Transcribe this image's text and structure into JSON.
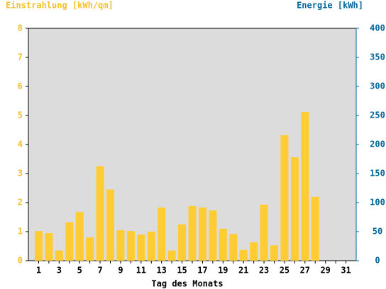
{
  "chart_data": {
    "type": "bar",
    "y_title": "Einstrahlung [kWh/qm]",
    "y2_title": "Energie [kWh]",
    "x_title": "Tag des Monats",
    "categories": [
      1,
      null,
      3,
      null,
      5,
      null,
      7,
      null,
      9,
      null,
      11,
      null,
      13,
      null,
      15,
      null,
      17,
      null,
      19,
      null,
      21,
      null,
      23,
      null,
      25,
      null,
      27,
      null,
      29,
      null,
      31
    ],
    "values": [
      1.02,
      0.95,
      0.35,
      1.32,
      1.68,
      0.8,
      3.25,
      2.45,
      1.05,
      1.02,
      0.9,
      1.0,
      1.83,
      0.35,
      1.25,
      1.88,
      1.83,
      1.73,
      1.1,
      0.92,
      0.37,
      0.63,
      1.93,
      0.53,
      4.32,
      3.56,
      5.12,
      2.2,
      null,
      null,
      null
    ],
    "color": "#ffcc33",
    "ylim": [
      0,
      8
    ],
    "yticks": [
      0,
      1,
      2,
      3,
      4,
      5,
      6,
      7,
      8
    ],
    "y_color": "#f5c02a",
    "y2lim": [
      0,
      400
    ],
    "y2ticks": [
      0,
      50,
      100,
      150,
      200,
      250,
      300,
      350,
      400
    ],
    "y2_color": "#006699",
    "background": "#dcdcdc"
  }
}
